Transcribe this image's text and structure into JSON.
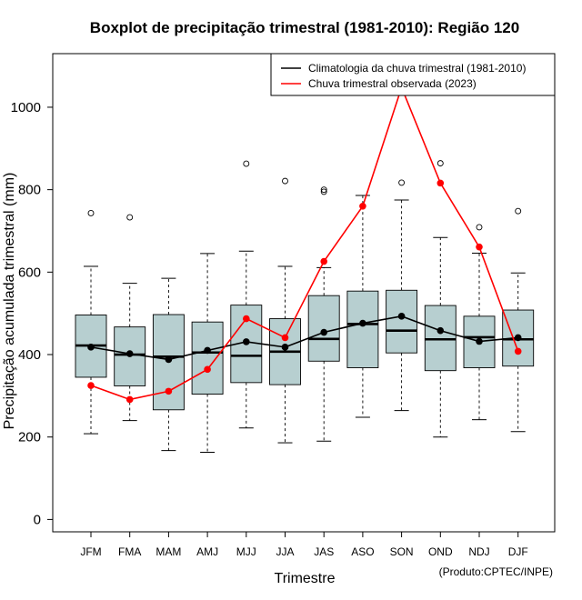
{
  "chart_data": {
    "type": "boxplot",
    "title": "Boxplot de precipitação trimestral (1981-2010): Região 120",
    "xlabel": "Trimestre",
    "ylabel": "Precipitação acumulada trimestral (mm)",
    "credit": "(Produto:CPTEC/INPE)",
    "ylim": [
      -30,
      1130
    ],
    "yticks": [
      0,
      200,
      400,
      600,
      800,
      1000
    ],
    "categories": [
      "JFM",
      "FMA",
      "MAM",
      "AMJ",
      "MJJ",
      "JJA",
      "JAS",
      "ASO",
      "SON",
      "OND",
      "NDJ",
      "DJF"
    ],
    "boxes": [
      {
        "min": 208,
        "q1": 345,
        "median": 422,
        "q3": 496,
        "max": 614,
        "outliers": [
          743
        ]
      },
      {
        "min": 240,
        "q1": 324,
        "median": 400,
        "q3": 467,
        "max": 573,
        "outliers": [
          733
        ]
      },
      {
        "min": 167,
        "q1": 266,
        "median": 395,
        "q3": 497,
        "max": 585,
        "outliers": []
      },
      {
        "min": 163,
        "q1": 304,
        "median": 405,
        "q3": 479,
        "max": 645,
        "outliers": []
      },
      {
        "min": 222,
        "q1": 332,
        "median": 397,
        "q3": 520,
        "max": 651,
        "outliers": [
          863
        ]
      },
      {
        "min": 186,
        "q1": 327,
        "median": 407,
        "q3": 487,
        "max": 614,
        "outliers": [
          821
        ]
      },
      {
        "min": 190,
        "q1": 384,
        "median": 438,
        "q3": 543,
        "max": 611,
        "outliers": [
          795,
          800
        ]
      },
      {
        "min": 248,
        "q1": 368,
        "median": 474,
        "q3": 554,
        "max": 786,
        "outliers": []
      },
      {
        "min": 264,
        "q1": 404,
        "median": 458,
        "q3": 556,
        "max": 775,
        "outliers": [
          817
        ]
      },
      {
        "min": 200,
        "q1": 361,
        "median": 437,
        "q3": 519,
        "max": 684,
        "outliers": [
          864
        ]
      },
      {
        "min": 242,
        "q1": 368,
        "median": 442,
        "q3": 493,
        "max": 646,
        "outliers": [
          709
        ]
      },
      {
        "min": 213,
        "q1": 372,
        "median": 437,
        "q3": 508,
        "max": 598,
        "outliers": [
          748
        ]
      }
    ],
    "series": [
      {
        "name": "Climatologia da chuva trimestral (1981-2010)",
        "color": "#000000",
        "values": [
          418,
          402,
          388,
          410,
          431,
          418,
          454,
          476,
          493,
          458,
          432,
          441
        ]
      },
      {
        "name": "Chuva trimestral observada (2023)",
        "color": "#ff0000",
        "values": [
          325,
          291,
          311,
          364,
          487,
          441,
          626,
          760,
          1048,
          816,
          661,
          408
        ]
      }
    ],
    "box_fill": "#b7cfd0",
    "legend_position": "top-right"
  }
}
